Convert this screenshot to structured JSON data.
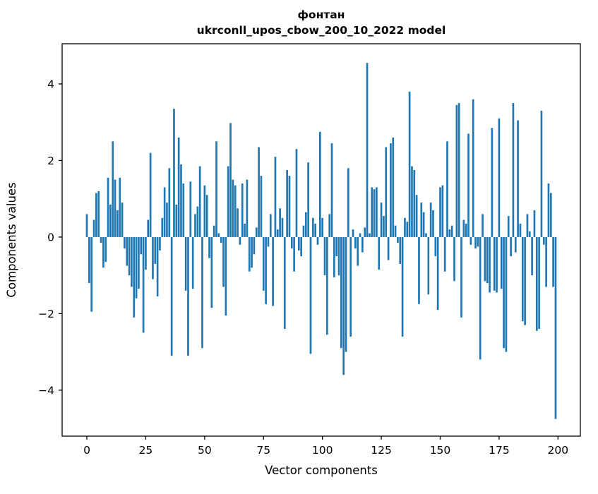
{
  "title": {
    "line1": "фонтан",
    "line2": "ukrconll_upos_cbow_200_10_2022 model"
  },
  "chart_data": {
    "type": "bar",
    "title": "фонтан\nukrconll_upos_cbow_200_10_2022 model",
    "xlabel": "Vector components",
    "ylabel": "Components values",
    "bar_color": "#1f77b4",
    "grid": false,
    "legend": "none",
    "x_ticks": [
      0,
      25,
      50,
      75,
      100,
      125,
      150,
      175,
      200
    ],
    "y_ticks": [
      -4,
      -2,
      0,
      2,
      4
    ],
    "xlim": [
      -10.5,
      209.5
    ],
    "ylim": [
      -5.2,
      5.05
    ],
    "bar_width": 0.8,
    "values": [
      0.6,
      -1.2,
      -1.95,
      0.45,
      1.15,
      1.2,
      -0.15,
      -0.8,
      -0.65,
      1.55,
      0.85,
      2.5,
      1.5,
      0.7,
      1.55,
      0.9,
      -0.3,
      -0.75,
      -1.0,
      -1.3,
      -2.1,
      -1.6,
      -1.35,
      -0.45,
      -2.5,
      -0.85,
      0.45,
      2.2,
      -1.1,
      -0.7,
      -1.55,
      -0.35,
      0.5,
      1.3,
      0.9,
      1.8,
      -3.1,
      3.35,
      0.85,
      2.6,
      1.9,
      1.4,
      -1.4,
      -3.1,
      1.45,
      -1.35,
      0.6,
      0.8,
      1.85,
      -2.9,
      1.35,
      1.1,
      -0.55,
      -1.85,
      0.3,
      2.5,
      0.1,
      -0.15,
      -1.3,
      -2.05,
      1.85,
      2.98,
      1.5,
      1.35,
      0.75,
      -0.2,
      1.4,
      0.35,
      1.5,
      -0.9,
      -0.8,
      -0.45,
      0.25,
      2.35,
      1.6,
      -1.4,
      -1.75,
      -0.25,
      0.6,
      -1.8,
      2.1,
      0.2,
      0.75,
      0.5,
      -2.4,
      1.75,
      1.6,
      -0.3,
      -0.9,
      2.3,
      -0.35,
      -0.5,
      0.3,
      0.65,
      1.95,
      -3.05,
      0.5,
      0.35,
      -0.2,
      2.75,
      0.5,
      -1.0,
      -2.55,
      0.6,
      2.45,
      -1.05,
      -0.5,
      -1.0,
      -2.9,
      -3.6,
      -3.0,
      1.8,
      -2.6,
      0.2,
      -0.3,
      -0.75,
      0.1,
      -0.4,
      0.25,
      4.55,
      0.1,
      1.3,
      1.25,
      1.3,
      -0.85,
      0.9,
      0.55,
      2.35,
      -0.6,
      2.45,
      2.6,
      0.3,
      -0.15,
      -0.7,
      -2.6,
      0.5,
      0.4,
      3.8,
      1.85,
      1.75,
      1.1,
      -1.75,
      0.9,
      0.65,
      0.1,
      -1.5,
      0.9,
      0.7,
      -0.5,
      -1.9,
      1.3,
      1.35,
      -0.9,
      2.5,
      0.2,
      0.3,
      -1.15,
      3.45,
      3.5,
      -2.1,
      0.45,
      0.35,
      2.7,
      -0.2,
      3.6,
      -0.3,
      -0.25,
      -3.2,
      0.6,
      -1.15,
      -1.2,
      -1.45,
      2.85,
      -1.4,
      -1.45,
      3.1,
      -1.35,
      -2.9,
      -3.0,
      0.55,
      -0.5,
      3.5,
      -0.4,
      3.05,
      0.35,
      -2.2,
      -2.3,
      0.6,
      0.15,
      -1.0,
      0.7,
      -2.45,
      -2.4,
      3.3,
      -0.2,
      -1.3,
      1.4,
      1.15,
      -1.3,
      -4.75
    ]
  }
}
